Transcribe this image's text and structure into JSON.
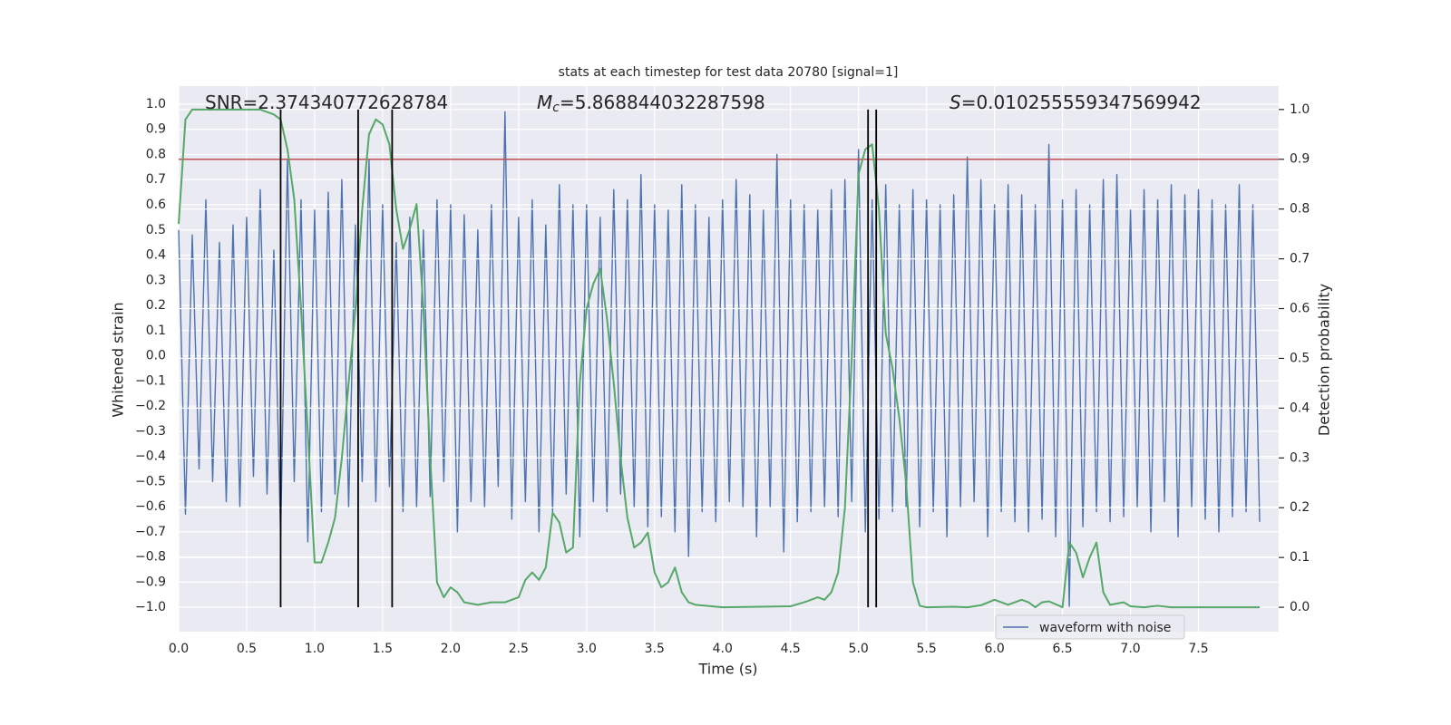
{
  "chart_data": {
    "type": "line",
    "title": "stats at each timestep for test data 20780 [signal=1]",
    "annotations": [
      {
        "text": "SNR=2.374340772628784"
      },
      {
        "symbol": "M",
        "subscript": "c",
        "text": "=5.868844032287598"
      },
      {
        "symbol": "S",
        "text": "=0.010255559347569942"
      }
    ],
    "xlabel": "Time (s)",
    "ylabel": "Whitened strain",
    "y2label": "Detection probability",
    "xlim": [
      0,
      8.09
    ],
    "ylim": [
      -1.097,
      1.072
    ],
    "y2lim": [
      -0.049,
      1.047
    ],
    "xticks": [
      {
        "value": 0,
        "label": "0.0"
      },
      0.5,
      {
        "value": 1,
        "label": "1.0"
      },
      1.5,
      {
        "value": 2,
        "label": "2.0"
      },
      2.5,
      {
        "value": 3,
        "label": "3.0"
      },
      3.5,
      {
        "value": 4,
        "label": "4.0"
      },
      4.5,
      {
        "value": 5,
        "label": "5.0"
      },
      5.5,
      {
        "value": 6,
        "label": "6.0"
      },
      6.5,
      {
        "value": 7,
        "label": "7.0"
      },
      7.5
    ],
    "yticks": [
      {
        "value": -1,
        "label": "−1.0"
      },
      {
        "value": -0.9,
        "label": "−0.9"
      },
      {
        "value": -0.8,
        "label": "−0.8"
      },
      {
        "value": -0.7,
        "label": "−0.7"
      },
      {
        "value": -0.6,
        "label": "−0.6"
      },
      {
        "value": -0.5,
        "label": "−0.5"
      },
      {
        "value": -0.4,
        "label": "−0.4"
      },
      {
        "value": -0.3,
        "label": "−0.3"
      },
      {
        "value": -0.2,
        "label": "−0.2"
      },
      {
        "value": -0.1,
        "label": "−0.1"
      },
      {
        "value": 0,
        "label": "0.0"
      },
      0.1,
      0.2,
      0.3,
      0.4,
      0.5,
      0.6,
      0.7,
      0.8,
      0.9,
      {
        "value": 1,
        "label": "1.0"
      }
    ],
    "y2ticks": [
      {
        "value": 0,
        "label": "0.0"
      },
      0.1,
      0.2,
      0.3,
      0.4,
      0.5,
      0.6,
      0.7,
      0.8,
      0.9,
      {
        "value": 1,
        "label": "1.0"
      }
    ],
    "grid": true,
    "legend": "lower right",
    "series": [
      {
        "name": "waveform with noise",
        "color": "#4c72b0",
        "x": [
          0,
          0.05,
          0.1,
          0.15,
          0.2,
          0.25,
          0.3,
          0.35,
          0.4,
          0.45,
          0.5,
          0.55,
          0.6,
          0.65,
          0.7,
          0.75,
          0.8,
          0.85,
          0.9,
          0.95,
          1,
          1.05,
          1.1,
          1.15,
          1.2,
          1.25,
          1.3,
          1.35,
          1.4,
          1.45,
          1.5,
          1.55,
          1.6,
          1.65,
          1.7,
          1.75,
          1.8,
          1.85,
          1.9,
          1.95,
          2,
          2.05,
          2.1,
          2.15,
          2.2,
          2.25,
          2.3,
          2.35,
          2.4,
          2.45,
          2.5,
          2.55,
          2.6,
          2.65,
          2.7,
          2.75,
          2.8,
          2.85,
          2.9,
          2.95,
          3,
          3.05,
          3.1,
          3.15,
          3.2,
          3.25,
          3.3,
          3.35,
          3.4,
          3.45,
          3.5,
          3.55,
          3.6,
          3.65,
          3.7,
          3.75,
          3.8,
          3.85,
          3.9,
          3.95,
          4,
          4.05,
          4.1,
          4.15,
          4.2,
          4.25,
          4.3,
          4.35,
          4.4,
          4.45,
          4.5,
          4.55,
          4.6,
          4.65,
          4.7,
          4.75,
          4.8,
          4.85,
          4.9,
          4.95,
          5,
          5.05,
          5.1,
          5.15,
          5.2,
          5.25,
          5.3,
          5.35,
          5.4,
          5.45,
          5.5,
          5.55,
          5.6,
          5.65,
          5.7,
          5.75,
          5.8,
          5.85,
          5.9,
          5.95,
          6,
          6.05,
          6.1,
          6.15,
          6.2,
          6.25,
          6.3,
          6.35,
          6.4,
          6.45,
          6.5,
          6.55,
          6.6,
          6.65,
          6.7,
          6.75,
          6.8,
          6.85,
          6.9,
          6.95,
          7,
          7.05,
          7.1,
          7.15,
          7.2,
          7.25,
          7.3,
          7.35,
          7.4,
          7.45,
          7.5,
          7.55,
          7.6,
          7.65,
          7.7,
          7.75,
          7.8,
          7.85,
          7.9,
          7.95
        ],
        "values": [
          0.5,
          -0.63,
          0.48,
          -0.45,
          0.62,
          -0.5,
          0.45,
          -0.58,
          0.52,
          -0.6,
          0.55,
          -0.48,
          0.66,
          -0.55,
          0.42,
          -0.72,
          0.78,
          -0.5,
          0.62,
          -0.74,
          0.58,
          -0.62,
          0.65,
          -0.55,
          0.7,
          -0.6,
          0.52,
          -0.5,
          0.78,
          -0.58,
          0.6,
          -0.52,
          0.45,
          -0.62,
          0.55,
          -0.6,
          0.5,
          -0.56,
          0.62,
          -0.5,
          0.6,
          -0.7,
          0.56,
          -0.58,
          0.5,
          -0.6,
          0.6,
          -0.52,
          0.97,
          -0.65,
          0.55,
          -0.58,
          0.62,
          -0.7,
          0.52,
          -0.62,
          0.68,
          -0.55,
          0.6,
          -0.72,
          0.6,
          -0.58,
          0.55,
          -0.62,
          0.66,
          -0.55,
          0.62,
          -0.6,
          0.72,
          -0.68,
          0.6,
          -0.64,
          0.58,
          -0.7,
          0.68,
          -0.8,
          0.6,
          -0.62,
          0.55,
          -0.66,
          0.62,
          -0.58,
          0.7,
          -0.6,
          0.64,
          -0.72,
          0.58,
          -0.6,
          0.8,
          -0.78,
          0.62,
          -0.66,
          0.6,
          -0.62,
          0.58,
          -0.6,
          0.66,
          -0.64,
          0.7,
          -0.58,
          0.82,
          -0.7,
          0.62,
          -0.65,
          0.68,
          -0.62,
          0.6,
          -0.6,
          0.66,
          -0.68,
          0.62,
          -0.62,
          0.6,
          -0.72,
          0.64,
          -0.6,
          0.79,
          -0.58,
          0.7,
          -0.72,
          0.6,
          -0.62,
          0.68,
          -0.66,
          0.64,
          -0.7,
          0.6,
          -0.65,
          0.84,
          -0.72,
          0.62,
          -1.0,
          0.66,
          -0.68,
          0.6,
          -0.62,
          0.7,
          -0.66,
          0.72,
          -0.64,
          0.58,
          -0.6,
          0.66,
          -0.7,
          0.62,
          -0.58,
          0.68,
          -0.72,
          0.64,
          -0.6,
          0.66,
          -0.65,
          0.62,
          -0.7,
          0.6,
          -0.64,
          0.68,
          -0.62,
          0.6,
          -0.66
        ]
      },
      {
        "color": "#55a868",
        "axis": "y2",
        "x": [
          0,
          0.05,
          0.1,
          0.2,
          0.3,
          0.4,
          0.5,
          0.6,
          0.7,
          0.75,
          0.8,
          0.85,
          0.9,
          0.95,
          1.0,
          1.05,
          1.1,
          1.15,
          1.2,
          1.25,
          1.3,
          1.35,
          1.4,
          1.45,
          1.5,
          1.55,
          1.6,
          1.65,
          1.7,
          1.75,
          1.8,
          1.85,
          1.9,
          1.95,
          2.0,
          2.05,
          2.1,
          2.2,
          2.3,
          2.4,
          2.5,
          2.55,
          2.6,
          2.65,
          2.7,
          2.75,
          2.8,
          2.85,
          2.9,
          2.95,
          3.0,
          3.05,
          3.1,
          3.15,
          3.2,
          3.25,
          3.3,
          3.35,
          3.4,
          3.45,
          3.5,
          3.55,
          3.6,
          3.65,
          3.7,
          3.75,
          3.8,
          4.0,
          4.5,
          4.6,
          4.7,
          4.75,
          4.8,
          4.85,
          4.9,
          4.95,
          5.0,
          5.05,
          5.1,
          5.15,
          5.2,
          5.25,
          5.3,
          5.35,
          5.4,
          5.45,
          5.5,
          5.7,
          5.8,
          5.9,
          6.0,
          6.05,
          6.1,
          6.2,
          6.25,
          6.3,
          6.35,
          6.4,
          6.5,
          6.55,
          6.6,
          6.65,
          6.7,
          6.75,
          6.8,
          6.85,
          6.95,
          7.0,
          7.1,
          7.2,
          7.3,
          7.5,
          7.95
        ],
        "values": [
          0.77,
          0.98,
          1.0,
          1.0,
          1.0,
          1.0,
          1.0,
          1.0,
          0.99,
          0.98,
          0.92,
          0.82,
          0.6,
          0.35,
          0.09,
          0.09,
          0.13,
          0.18,
          0.3,
          0.45,
          0.6,
          0.8,
          0.95,
          0.98,
          0.97,
          0.93,
          0.8,
          0.72,
          0.76,
          0.81,
          0.6,
          0.3,
          0.05,
          0.02,
          0.04,
          0.03,
          0.01,
          0.005,
          0.01,
          0.01,
          0.02,
          0.055,
          0.07,
          0.055,
          0.08,
          0.19,
          0.17,
          0.11,
          0.12,
          0.45,
          0.6,
          0.65,
          0.68,
          0.58,
          0.45,
          0.3,
          0.18,
          0.12,
          0.13,
          0.15,
          0.07,
          0.04,
          0.05,
          0.08,
          0.03,
          0.01,
          0.005,
          0.0,
          0.002,
          0.01,
          0.02,
          0.015,
          0.03,
          0.07,
          0.2,
          0.5,
          0.87,
          0.92,
          0.93,
          0.8,
          0.55,
          0.48,
          0.38,
          0.25,
          0.05,
          0.003,
          0.0,
          0.001,
          0.0,
          0.004,
          0.015,
          0.01,
          0.005,
          0.015,
          0.01,
          0.0,
          0.01,
          0.012,
          0.0,
          0.13,
          0.11,
          0.06,
          0.1,
          0.13,
          0.03,
          0.005,
          0.01,
          0.002,
          0.0,
          0.003,
          0.0,
          0.0,
          0.0
        ]
      }
    ],
    "hlines": [
      {
        "value": 0.9,
        "axis": "y2",
        "color": "#c44e52"
      }
    ],
    "vlines": {
      "values": [
        0.75,
        1.32,
        1.57,
        5.07,
        5.13
      ],
      "color": "#000000"
    }
  }
}
